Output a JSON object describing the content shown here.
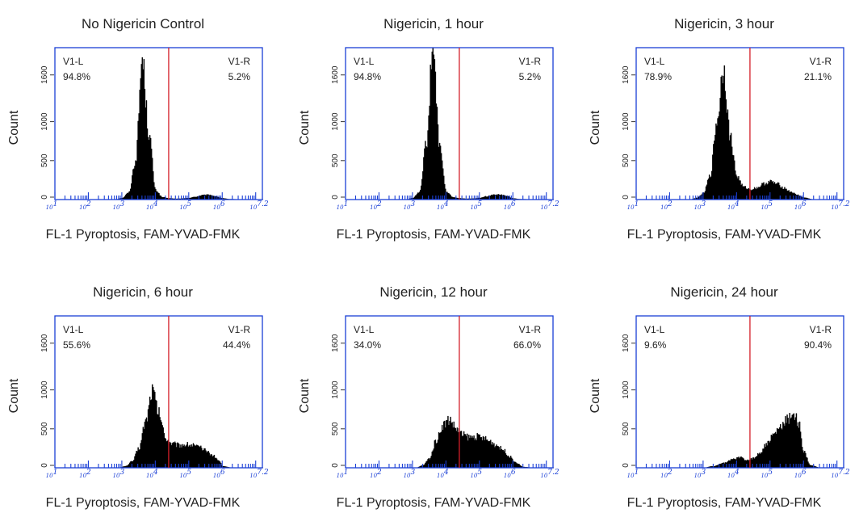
{
  "chart_data": [
    {
      "type": "histogram",
      "title": "No Nigericin Control",
      "xlabel": "FL-1 Pyroptosis, FAM-YVAD-FMK",
      "ylabel": "Count",
      "x_scale": "log",
      "xlim": [
        1,
        7.2
      ],
      "ylim": [
        0,
        1950
      ],
      "x_tick_labels": [
        [
          "10",
          "1"
        ],
        [
          "10",
          "2"
        ],
        [
          "10",
          "3"
        ],
        [
          "10",
          "4"
        ],
        [
          "10",
          "5"
        ],
        [
          "10",
          "6"
        ],
        [
          "10",
          "7.2"
        ]
      ],
      "y_ticks": [
        0,
        500,
        1000,
        1600
      ],
      "gate_x_log": 4.4,
      "gates": [
        {
          "name": "V1-L",
          "percent": "94.8%"
        },
        {
          "name": "V1-R",
          "percent": "5.2%"
        }
      ],
      "histogram_log10_x": [
        2.8,
        3.0,
        3.2,
        3.4,
        3.6,
        3.8,
        4.0,
        4.2,
        4.4,
        4.6,
        4.8,
        5.0,
        5.2,
        5.4,
        5.6,
        5.8,
        6.0,
        6.2,
        6.6,
        7.2
      ],
      "histogram_counts": [
        0,
        20,
        90,
        500,
        1800,
        850,
        120,
        30,
        15,
        10,
        12,
        20,
        35,
        55,
        60,
        40,
        15,
        5,
        0,
        0
      ]
    },
    {
      "type": "histogram",
      "title": "Nigericin, 1 hour",
      "xlabel": "FL-1 Pyroptosis, FAM-YVAD-FMK",
      "ylabel": "Count",
      "x_scale": "log",
      "xlim": [
        1,
        7.2
      ],
      "ylim": [
        0,
        1950
      ],
      "x_tick_labels": [
        [
          "10",
          "1"
        ],
        [
          "10",
          "2"
        ],
        [
          "10",
          "3"
        ],
        [
          "10",
          "4"
        ],
        [
          "10",
          "5"
        ],
        [
          "10",
          "6"
        ],
        [
          "10",
          "7.2"
        ]
      ],
      "y_ticks": [
        0,
        500,
        1000,
        1600
      ],
      "gate_x_log": 4.4,
      "gates": [
        {
          "name": "V1-L",
          "percent": "94.8%"
        },
        {
          "name": "V1-R",
          "percent": "5.2%"
        }
      ],
      "histogram_log10_x": [
        2.8,
        3.0,
        3.2,
        3.4,
        3.6,
        3.8,
        4.0,
        4.2,
        4.4,
        4.6,
        4.8,
        5.0,
        5.2,
        5.4,
        5.6,
        5.8,
        6.0,
        6.2,
        6.6,
        7.2
      ],
      "histogram_counts": [
        0,
        20,
        100,
        700,
        1950,
        700,
        100,
        30,
        15,
        10,
        12,
        20,
        40,
        60,
        65,
        45,
        15,
        5,
        0,
        0
      ]
    },
    {
      "type": "histogram",
      "title": "Nigericin, 3 hour",
      "xlabel": "FL-1 Pyroptosis, FAM-YVAD-FMK",
      "ylabel": "Count",
      "x_scale": "log",
      "xlim": [
        1,
        7.2
      ],
      "ylim": [
        0,
        1950
      ],
      "x_tick_labels": [
        [
          "10",
          "1"
        ],
        [
          "10",
          "2"
        ],
        [
          "10",
          "3"
        ],
        [
          "10",
          "4"
        ],
        [
          "10",
          "5"
        ],
        [
          "10",
          "6"
        ],
        [
          "10",
          "7.2"
        ]
      ],
      "y_ticks": [
        0,
        500,
        1000,
        1600
      ],
      "gate_x_log": 4.4,
      "gates": [
        {
          "name": "V1-L",
          "percent": "78.9%"
        },
        {
          "name": "V1-R",
          "percent": "21.1%"
        }
      ],
      "histogram_log10_x": [
        2.6,
        2.8,
        3.0,
        3.2,
        3.4,
        3.6,
        3.8,
        4.0,
        4.2,
        4.4,
        4.6,
        4.8,
        5.0,
        5.2,
        5.4,
        5.6,
        5.8,
        6.0,
        6.3,
        7.2
      ],
      "histogram_counts": [
        0,
        20,
        80,
        300,
        1000,
        1700,
        800,
        300,
        160,
        130,
        150,
        200,
        230,
        200,
        150,
        100,
        60,
        25,
        0,
        0
      ]
    },
    {
      "type": "histogram",
      "title": "Nigericin, 6 hour",
      "xlabel": "FL-1 Pyroptosis, FAM-YVAD-FMK",
      "ylabel": "Count",
      "x_scale": "log",
      "xlim": [
        1,
        7.2
      ],
      "ylim": [
        0,
        1950
      ],
      "x_tick_labels": [
        [
          "10",
          "1"
        ],
        [
          "10",
          "2"
        ],
        [
          "10",
          "3"
        ],
        [
          "10",
          "4"
        ],
        [
          "10",
          "5"
        ],
        [
          "10",
          "6"
        ],
        [
          "10",
          "7.2"
        ]
      ],
      "y_ticks": [
        0,
        500,
        1000,
        1600
      ],
      "gate_x_log": 4.4,
      "gates": [
        {
          "name": "V1-L",
          "percent": "55.6%"
        },
        {
          "name": "V1-R",
          "percent": "44.4%"
        }
      ],
      "histogram_log10_x": [
        2.9,
        3.1,
        3.3,
        3.5,
        3.7,
        3.9,
        4.1,
        4.3,
        4.5,
        4.7,
        4.9,
        5.1,
        5.3,
        5.5,
        5.7,
        5.9,
        6.0,
        6.3,
        7.2
      ],
      "histogram_counts": [
        0,
        20,
        80,
        250,
        600,
        1000,
        700,
        380,
        310,
        290,
        300,
        290,
        260,
        220,
        160,
        90,
        20,
        0,
        0
      ]
    },
    {
      "type": "histogram",
      "title": "Nigericin, 12 hour",
      "xlabel": "FL-1 Pyroptosis, FAM-YVAD-FMK",
      "ylabel": "Count",
      "x_scale": "log",
      "xlim": [
        1,
        7.2
      ],
      "ylim": [
        0,
        1950
      ],
      "x_tick_labels": [
        [
          "10",
          "1"
        ],
        [
          "10",
          "2"
        ],
        [
          "10",
          "3"
        ],
        [
          "10",
          "4"
        ],
        [
          "10",
          "5"
        ],
        [
          "10",
          "6"
        ],
        [
          "10",
          "7.2"
        ]
      ],
      "y_ticks": [
        0,
        500,
        1000,
        1600
      ],
      "gate_x_log": 4.4,
      "gates": [
        {
          "name": "V1-L",
          "percent": "34.0%"
        },
        {
          "name": "V1-R",
          "percent": "66.0%"
        }
      ],
      "histogram_log10_x": [
        3.1,
        3.3,
        3.5,
        3.7,
        3.9,
        4.1,
        4.3,
        4.5,
        4.7,
        4.9,
        5.1,
        5.3,
        5.5,
        5.7,
        5.9,
        6.1,
        6.3,
        6.6,
        7.2
      ],
      "histogram_counts": [
        0,
        30,
        120,
        350,
        550,
        620,
        500,
        420,
        390,
        400,
        380,
        340,
        290,
        230,
        140,
        60,
        10,
        0,
        0
      ]
    },
    {
      "type": "histogram",
      "title": "Nigericin, 24 hour",
      "xlabel": "FL-1 Pyroptosis, FAM-YVAD-FMK",
      "ylabel": "Count",
      "x_scale": "log",
      "xlim": [
        1,
        7.2
      ],
      "ylim": [
        0,
        1950
      ],
      "x_tick_labels": [
        [
          "10",
          "1"
        ],
        [
          "10",
          "2"
        ],
        [
          "10",
          "3"
        ],
        [
          "10",
          "4"
        ],
        [
          "10",
          "5"
        ],
        [
          "10",
          "6"
        ],
        [
          "10",
          "7.2"
        ]
      ],
      "y_ticks": [
        0,
        500,
        1000,
        1600
      ],
      "gate_x_log": 4.4,
      "gates": [
        {
          "name": "V1-L",
          "percent": "9.6%"
        },
        {
          "name": "V1-R",
          "percent": "90.4%"
        }
      ],
      "histogram_log10_x": [
        3.0,
        3.3,
        3.6,
        3.9,
        4.1,
        4.3,
        4.5,
        4.7,
        4.9,
        5.1,
        5.3,
        5.5,
        5.7,
        5.85,
        6.0,
        6.2,
        6.5,
        7.2
      ],
      "histogram_counts": [
        0,
        20,
        60,
        110,
        130,
        100,
        120,
        200,
        310,
        420,
        520,
        620,
        700,
        560,
        200,
        30,
        0,
        0
      ]
    }
  ]
}
